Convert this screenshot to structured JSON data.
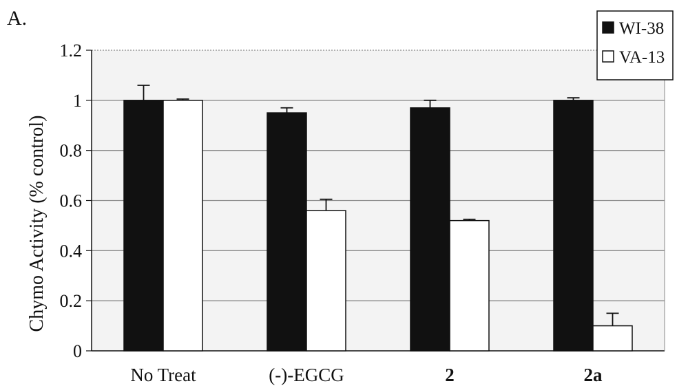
{
  "panel_label": "A.",
  "chart_data": {
    "type": "bar",
    "title": "",
    "xlabel": "",
    "ylabel": "Chymo Activity (% control)",
    "ylim": [
      0,
      1.2
    ],
    "yticks": [
      "0",
      "0.2",
      "0.4",
      "0.6",
      "0.8",
      "1",
      "1.2"
    ],
    "grid": true,
    "legend_position": "top-right",
    "categories": [
      "No Treat",
      "(-)-EGCG",
      "2",
      "2a"
    ],
    "category_bold": [
      false,
      false,
      true,
      true
    ],
    "series": [
      {
        "name": "WI-38",
        "color": "#111111",
        "values": [
          1.0,
          0.95,
          0.97,
          1.0
        ],
        "errors": [
          0.06,
          0.02,
          0.03,
          0.01
        ]
      },
      {
        "name": "VA-13",
        "color": "#ffffff",
        "values": [
          1.0,
          0.56,
          0.52,
          0.1
        ],
        "errors": [
          0.005,
          0.045,
          0.005,
          0.05
        ]
      }
    ]
  }
}
